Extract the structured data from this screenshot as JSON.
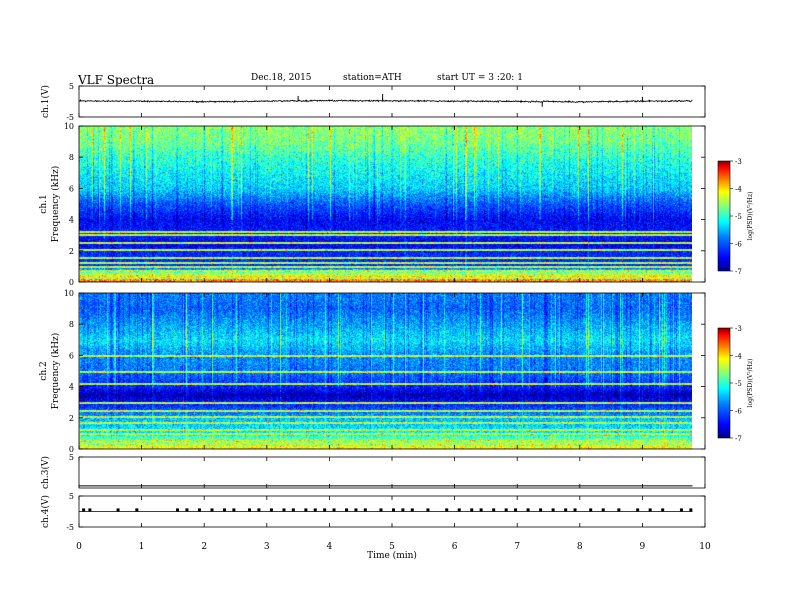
{
  "header": {
    "title": "VLF Spectra",
    "date": "Dec.18, 2015",
    "station": "station=ATH",
    "start": "start UT = 3 :20: 1"
  },
  "colors": {
    "colormap": [
      "#00007f",
      "#0000ff",
      "#0077ff",
      "#00ffff",
      "#7fff7f",
      "#ffff00",
      "#ff7700",
      "#ff0000",
      "#7f0000"
    ]
  },
  "chart_data": [
    {
      "type": "line",
      "panel": "ch1-waveform",
      "ylabel": "ch.1(V)",
      "ylim": [
        -5,
        5
      ],
      "ytick_labels": [
        "5",
        "-5"
      ],
      "x": [
        0,
        1,
        2,
        3,
        4,
        5,
        6,
        7,
        8,
        9,
        9.8
      ],
      "y": [
        0.2,
        0.1,
        -0.1,
        0.1,
        0.3,
        0.2,
        0.1,
        0.0,
        -0.1,
        0.1,
        0.2
      ],
      "baseline_v": 0.0,
      "noise_amplitude_v": 0.4,
      "spikes": [
        {
          "x": 3.5,
          "y": 1.8
        },
        {
          "x": 4.85,
          "y": 2.4
        },
        {
          "x": 7.4,
          "y": -1.7
        },
        {
          "x": 9.0,
          "y": 1.5
        }
      ]
    },
    {
      "type": "heatmap",
      "panel": "ch1-spectrogram",
      "ylabel": "ch.1 Frequency (kHz)",
      "ylim": [
        0,
        10
      ],
      "ytick_labels": [
        "10",
        "8",
        "6",
        "4",
        "2",
        "0"
      ],
      "xlim": [
        0,
        9.8
      ],
      "colorbar_label": "log(PSD)(V²/Hz)",
      "colorbar_range": [
        -7,
        -3
      ],
      "colorbar_tick_labels": [
        "-3",
        "-4",
        "-5",
        "-6",
        "-7"
      ],
      "freq_profile": [
        {
          "f": 0.0,
          "v": -3.5
        },
        {
          "f": 0.5,
          "v": -4.2
        },
        {
          "f": 1.0,
          "v": -6.2
        },
        {
          "f": 2.0,
          "v": -6.3
        },
        {
          "f": 2.5,
          "v": -6.6
        },
        {
          "f": 3.0,
          "v": -6.3
        },
        {
          "f": 4.0,
          "v": -6.5
        },
        {
          "f": 5.0,
          "v": -6.0
        },
        {
          "f": 6.0,
          "v": -5.4
        },
        {
          "f": 7.0,
          "v": -5.2
        },
        {
          "f": 8.0,
          "v": -5.0
        },
        {
          "f": 9.0,
          "v": -4.7
        },
        {
          "f": 10.0,
          "v": -4.6
        }
      ],
      "lines_khz": [
        0.3,
        0.5,
        0.75,
        1.0,
        1.3,
        1.6,
        2.1,
        2.55,
        3.1,
        3.3
      ]
    },
    {
      "type": "heatmap",
      "panel": "ch2-spectrogram",
      "ylabel": "ch.2 Frequency (kHz)",
      "ylim": [
        0,
        10
      ],
      "ytick_labels": [
        "10",
        "8",
        "6",
        "4",
        "2",
        "0"
      ],
      "xlim": [
        0,
        9.8
      ],
      "colorbar_label": "log(PSD)(V²/Hz)",
      "colorbar_range": [
        -7,
        -3
      ],
      "colorbar_tick_labels": [
        "-3",
        "-4",
        "-5",
        "-6",
        "-7"
      ],
      "freq_profile": [
        {
          "f": 0.0,
          "v": -4.0
        },
        {
          "f": 1.0,
          "v": -5.2
        },
        {
          "f": 2.0,
          "v": -5.5
        },
        {
          "f": 3.0,
          "v": -6.4
        },
        {
          "f": 3.5,
          "v": -6.8
        },
        {
          "f": 4.0,
          "v": -6.3
        },
        {
          "f": 5.0,
          "v": -5.8
        },
        {
          "f": 6.0,
          "v": -5.7
        },
        {
          "f": 7.0,
          "v": -5.3
        },
        {
          "f": 8.0,
          "v": -5.6
        },
        {
          "f": 9.0,
          "v": -5.9
        },
        {
          "f": 10.0,
          "v": -5.8
        }
      ],
      "lines_khz": [
        0.3,
        0.6,
        1.0,
        1.3,
        1.7,
        2.1,
        2.5,
        3.0,
        4.2,
        5.0,
        6.0
      ]
    },
    {
      "type": "line",
      "panel": "ch3-waveform",
      "ylabel": "ch.3(V)",
      "ylim": [
        -5,
        5
      ],
      "ytick_labels": [
        "5"
      ],
      "x": [
        0,
        9.8
      ],
      "y": [
        -4.3,
        -4.3
      ]
    },
    {
      "type": "line",
      "panel": "ch4-waveform",
      "ylabel": "ch.4(V)",
      "ylim": [
        -5,
        5
      ],
      "ytick_labels": [
        "5",
        "-5"
      ],
      "x": [
        0,
        9.8
      ],
      "y": [
        0,
        0
      ],
      "pulse_times_min": [
        0.05,
        0.15,
        0.6,
        0.9,
        1.55,
        1.7,
        1.9,
        2.1,
        2.3,
        2.45,
        2.7,
        2.85,
        3.05,
        3.25,
        3.4,
        3.6,
        3.75,
        3.9,
        4.05,
        4.25,
        4.4,
        4.55,
        4.8,
        5.0,
        5.15,
        5.3,
        5.55,
        5.85,
        6.05,
        6.25,
        6.4,
        6.6,
        6.8,
        6.95,
        7.15,
        7.35,
        7.55,
        7.75,
        7.9,
        8.15,
        8.35,
        8.6,
        8.9,
        9.1,
        9.3,
        9.6,
        9.75
      ]
    },
    {
      "type": "axis",
      "xlabel": "Time (min)",
      "xlim": [
        0,
        10
      ],
      "x_ticks": [
        0,
        1,
        2,
        3,
        4,
        5,
        6,
        7,
        8,
        9,
        10
      ]
    }
  ]
}
